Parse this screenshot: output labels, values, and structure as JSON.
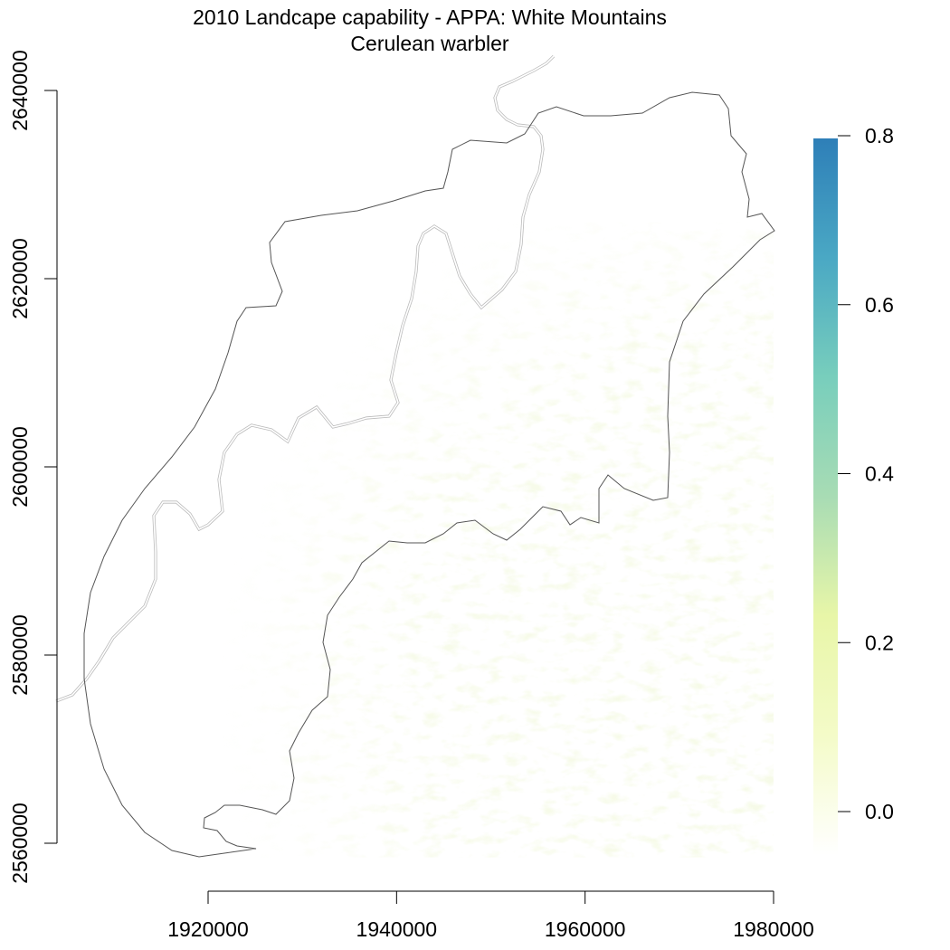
{
  "chart_data": {
    "type": "heatmap",
    "title": "2010 Landcape capability - APPA: White Mountains",
    "subtitle": "Cerulean warbler",
    "xlabel": "",
    "ylabel": "",
    "x_ticks": [
      1920000,
      1940000,
      1960000,
      1980000
    ],
    "x_tick_labels": [
      "1920000",
      "1940000",
      "1960000",
      "1980000"
    ],
    "y_ticks": [
      2560000,
      2580000,
      2600000,
      2620000,
      2640000
    ],
    "y_tick_labels": [
      "2560000",
      "2580000",
      "2600000",
      "2620000",
      "2640000"
    ],
    "xlim": [
      1904000,
      1980000
    ],
    "ylim": [
      2558000,
      2642000
    ],
    "raster_extent": {
      "x": [
        1907000,
        1980000
      ],
      "y": [
        2558500,
        2626000
      ]
    },
    "legend": {
      "position": "right",
      "min": 0.0,
      "max": 0.8,
      "ticks": [
        0.0,
        0.2,
        0.4,
        0.6,
        0.8
      ],
      "tick_labels": [
        "0.0",
        "0.2",
        "0.4",
        "0.6",
        "0.8"
      ],
      "colors": [
        "#ffffff",
        "#f4fbc8",
        "#e8f6a8",
        "#a8dcb4",
        "#78cebc",
        "#4aa8c4",
        "#2e7fb8"
      ]
    },
    "values_summary": "Capability values mostly between 0.0 and 0.1, higher concentrations in the south-east of the extent",
    "grid": false,
    "outline_colors": {
      "boundary": "#555555",
      "dashed_line": "#bbbbbb"
    }
  }
}
